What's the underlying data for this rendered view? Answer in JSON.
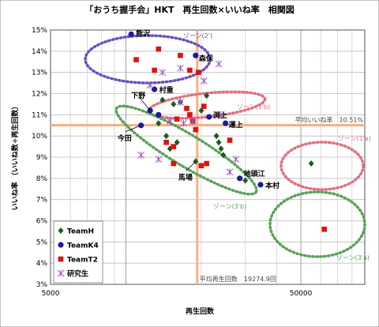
{
  "chart_data": {
    "type": "scatter",
    "title": "「おうち握手会」HKT　再生回数×いいね率　相関図",
    "xlabel": "再生回数",
    "ylabel": "いいね率 （いいね数÷再生回数）",
    "xscale": "log",
    "xlim": [
      5000,
      90000
    ],
    "ylim": [
      3,
      15
    ],
    "x_ticks": [
      {
        "value": 5000,
        "label": "5000"
      },
      {
        "value": 50000,
        "label": "50000"
      }
    ],
    "y_ticks": [
      {
        "value": 3,
        "label": "3%"
      },
      {
        "value": 4,
        "label": "4%"
      },
      {
        "value": 5,
        "label": "5%"
      },
      {
        "value": 6,
        "label": "6%"
      },
      {
        "value": 7,
        "label": "7%"
      },
      {
        "value": 8,
        "label": "8%"
      },
      {
        "value": 9,
        "label": "9%"
      },
      {
        "value": 10,
        "label": "10%"
      },
      {
        "value": 11,
        "label": "11%"
      },
      {
        "value": 12,
        "label": "12%"
      },
      {
        "value": 13,
        "label": "13%"
      },
      {
        "value": 14,
        "label": "14%"
      },
      {
        "value": 15,
        "label": "15%"
      }
    ],
    "grid": true,
    "legend_position": "bottom-left",
    "avg_lines": {
      "y": {
        "value": 10.51,
        "label": "平均いいね率　10.51%"
      },
      "x": {
        "value": 19274.9,
        "label": "平均再生回数　19274.9回"
      }
    },
    "series": [
      {
        "name": "TeamH",
        "marker": "diamond",
        "color": "#1e5b1e",
        "points": [
          [
            14000,
            11.7
          ],
          [
            16500,
            11.6
          ],
          [
            15500,
            11.5
          ],
          [
            21000,
            11.9
          ],
          [
            13500,
            10.6
          ],
          [
            20000,
            11.2
          ],
          [
            14500,
            10.0
          ],
          [
            15000,
            9.4
          ],
          [
            16000,
            9.7
          ],
          [
            23000,
            10.0
          ],
          [
            23500,
            9.7
          ],
          [
            24000,
            9.4
          ],
          [
            19000,
            8.8
          ],
          [
            24500,
            9.1
          ],
          [
            30000,
            7.9
          ],
          [
            55000,
            8.7
          ]
        ]
      },
      {
        "name": "TeamK4",
        "marker": "circle",
        "color": "#1a1aa0",
        "points": [
          [
            10500,
            14.8
          ],
          [
            19000,
            13.8
          ],
          [
            13000,
            12.2
          ],
          [
            12500,
            11.2
          ],
          [
            21500,
            10.9
          ],
          [
            25000,
            10.6
          ],
          [
            11500,
            10.5
          ],
          [
            28500,
            8.0
          ],
          [
            34500,
            7.7
          ],
          [
            13500,
            11.0
          ]
        ]
      },
      {
        "name": "TeamT2",
        "marker": "square",
        "color": "#e01010",
        "points": [
          [
            11000,
            13.6
          ],
          [
            13500,
            14.1
          ],
          [
            16500,
            13.8
          ],
          [
            18000,
            13.1
          ],
          [
            19500,
            13.0
          ],
          [
            13000,
            13.1
          ],
          [
            17500,
            11.3
          ],
          [
            20500,
            11.4
          ],
          [
            18000,
            11.0
          ],
          [
            18500,
            10.7
          ],
          [
            19000,
            10.3
          ],
          [
            16000,
            10.8
          ],
          [
            14500,
            9.7
          ],
          [
            15500,
            9.5
          ],
          [
            26000,
            9.8
          ],
          [
            15500,
            8.7
          ],
          [
            21000,
            8.7
          ],
          [
            20000,
            8.6
          ],
          [
            62000,
            5.6
          ]
        ]
      },
      {
        "name": "研究生",
        "marker": "asterisk",
        "color": "#9a55c4",
        "points": [
          [
            12500,
            12.4
          ],
          [
            14000,
            13.0
          ],
          [
            16500,
            13.2
          ],
          [
            23500,
            13.4
          ],
          [
            20500,
            12.6
          ],
          [
            17000,
            10.6
          ],
          [
            18500,
            10.7
          ],
          [
            24000,
            11.0
          ],
          [
            16500,
            11.6
          ],
          [
            15000,
            10.7
          ],
          [
            11500,
            9.1
          ],
          [
            13500,
            8.9
          ],
          [
            26000,
            8.3
          ],
          [
            27500,
            8.9
          ]
        ]
      }
    ],
    "member_labels": [
      {
        "text": "熊沢",
        "x": 10500,
        "y": 14.8
      },
      {
        "text": "森保",
        "x": 19000,
        "y": 13.8
      },
      {
        "text": "村重",
        "x": 13000,
        "y": 12.2
      },
      {
        "text": "下野",
        "x": 12500,
        "y": 11.2
      },
      {
        "text": "渕上",
        "x": 21500,
        "y": 10.9
      },
      {
        "text": "運上",
        "x": 25000,
        "y": 10.6
      },
      {
        "text": "今田",
        "x": 11500,
        "y": 10.5
      },
      {
        "text": "馬場",
        "x": 19000,
        "y": 8.8
      },
      {
        "text": "地頭江",
        "x": 28500,
        "y": 8.0
      },
      {
        "text": "本村",
        "x": 34500,
        "y": 7.7
      }
    ],
    "zones": [
      {
        "label": "ゾーン(2')",
        "color": "#6a4fc0"
      },
      {
        "label": "ゾーン(1'b)",
        "color": "#e07080"
      },
      {
        "label": "ゾーン(1'a)",
        "color": "#e07080"
      },
      {
        "label": "ゾーン(3'b)",
        "color": "#5aa15a"
      },
      {
        "label": "ゾーン(3'a)",
        "color": "#5aa15a"
      }
    ]
  }
}
